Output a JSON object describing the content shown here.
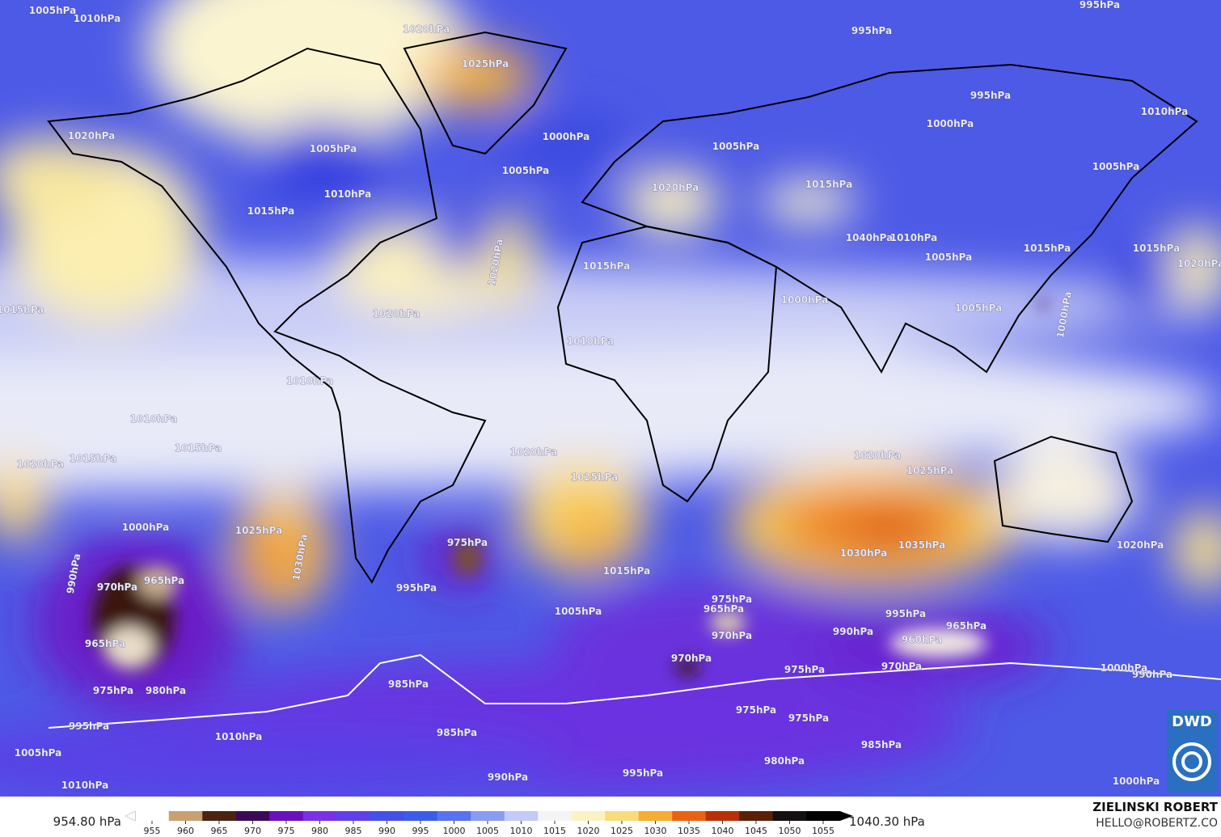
{
  "map": {
    "isobar_labels": [
      "1005hPa",
      "1010hPa",
      "1020hPa",
      "1025hPa",
      "995hPa",
      "995hPa",
      "995hPa",
      "1000hPa",
      "1010hPa",
      "1020hPa",
      "1005hPa",
      "1010hPa",
      "1000hPa",
      "1005hPa",
      "1005hPa",
      "1020hPa",
      "1015hPa",
      "1005hPa",
      "1015hPa",
      "1020hPa",
      "1015hPa",
      "1040hPa",
      "1010hPa",
      "1005hPa",
      "1015hPa",
      "1015hPa",
      "1020hPa",
      "1015hPa",
      "1020hPa",
      "1000hPa",
      "1005hPa",
      "1000hPa",
      "1010hPa",
      "1010hPa",
      "1010hPa",
      "1015hPa",
      "1015hPa",
      "1020hPa",
      "1020hPa",
      "1025hPa",
      "1020hPa",
      "1025hPa",
      "1025hPa",
      "1000hPa",
      "1030hPa",
      "975hPa",
      "1030hPa",
      "1035hPa",
      "1020hPa",
      "1015hPa",
      "995hPa",
      "990hPa",
      "970hPa",
      "965hPa",
      "965hPa",
      "980hPa",
      "975hPa",
      "1005hPa",
      "975hPa",
      "965hPa",
      "970hPa",
      "990hPa",
      "995hPa",
      "965hPa",
      "960hPa",
      "970hPa",
      "970hPa",
      "975hPa",
      "985hPa",
      "975hPa",
      "975hPa",
      "985hPa",
      "980hPa",
      "985hPa",
      "995hPa",
      "990hPa",
      "1010hPa",
      "995hPa",
      "1005hPa",
      "1010hPa",
      "1000hPa",
      "990hPa",
      "1000hPa"
    ],
    "logo": "DWD",
    "author": "ZIELINSKI ROBERT",
    "contact": "HELLO@ROBERTZ.CO"
  },
  "colorbar": {
    "min_label": "954.80 hPa",
    "max_label": "1040.30 hPa",
    "ticks": [
      955,
      960,
      965,
      970,
      975,
      980,
      985,
      990,
      995,
      1000,
      1005,
      1010,
      1015,
      1020,
      1025,
      1030,
      1035,
      1040,
      1045,
      1050,
      1055
    ],
    "colors": [
      "#ffffff",
      "#c8a070",
      "#4a2410",
      "#3a0a5a",
      "#6a10c0",
      "#7a30e6",
      "#5f3fea",
      "#4450e6",
      "#3c5ce8",
      "#5a72ee",
      "#8a9cf2",
      "#c2caf8",
      "#f4f4f6",
      "#fbf2c4",
      "#f8dc7a",
      "#f5ae32",
      "#e86212",
      "#b83008",
      "#5a2008",
      "#151010",
      "#000000"
    ]
  }
}
